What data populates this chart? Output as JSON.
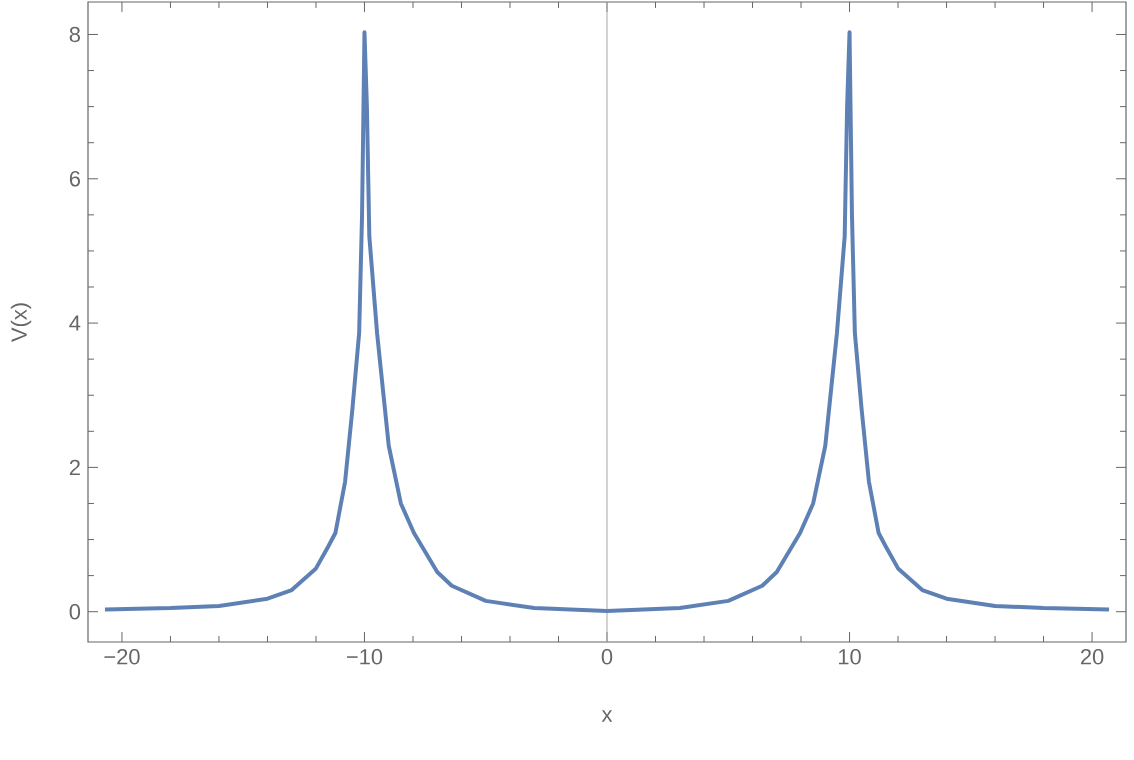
{
  "chart_data": {
    "type": "line",
    "xlabel": "x",
    "ylabel": "V(x)",
    "xlim": [
      -21.4,
      21.4
    ],
    "ylim": [
      -0.42,
      8.45
    ],
    "xticks": [
      {
        "value": -20,
        "label": "−20"
      },
      {
        "value": -10,
        "label": "−10"
      },
      0,
      10,
      20
    ],
    "yticks": [
      0,
      2,
      4,
      6,
      8
    ],
    "ref_lines": [
      {
        "axis": "x",
        "value": 0,
        "color": "#a6a6a6"
      }
    ],
    "series": [
      {
        "color": "#5e81b5",
        "line_style": "solid",
        "x": [
          -20.7,
          -18,
          -16,
          -14,
          -13,
          -12.5,
          -12,
          -11.5,
          -11.2,
          -10.8,
          -10.5,
          -10.22,
          -10.1,
          -10.0,
          -9.9,
          -9.8,
          -9.48,
          -9,
          -8.5,
          -7.96,
          -7,
          -6.4,
          -5,
          -3,
          0,
          3,
          5,
          6.4,
          7,
          7.96,
          8.5,
          9,
          9.48,
          9.8,
          9.9,
          10.0,
          10.1,
          10.22,
          10.5,
          10.8,
          11.2,
          11.5,
          12,
          12.5,
          13,
          14,
          16,
          18,
          20.7
        ],
        "values": [
          0.03,
          0.05,
          0.08,
          0.18,
          0.3,
          0.45,
          0.6,
          0.9,
          1.09,
          1.8,
          2.8,
          3.86,
          5.5,
          8.03,
          7.0,
          5.2,
          3.86,
          2.3,
          1.5,
          1.09,
          0.55,
          0.36,
          0.15,
          0.05,
          0.01,
          0.05,
          0.15,
          0.36,
          0.55,
          1.09,
          1.5,
          2.3,
          3.86,
          5.2,
          7.0,
          8.03,
          5.5,
          3.86,
          2.8,
          1.8,
          1.09,
          0.9,
          0.6,
          0.45,
          0.3,
          0.18,
          0.08,
          0.05,
          0.03
        ]
      }
    ]
  }
}
